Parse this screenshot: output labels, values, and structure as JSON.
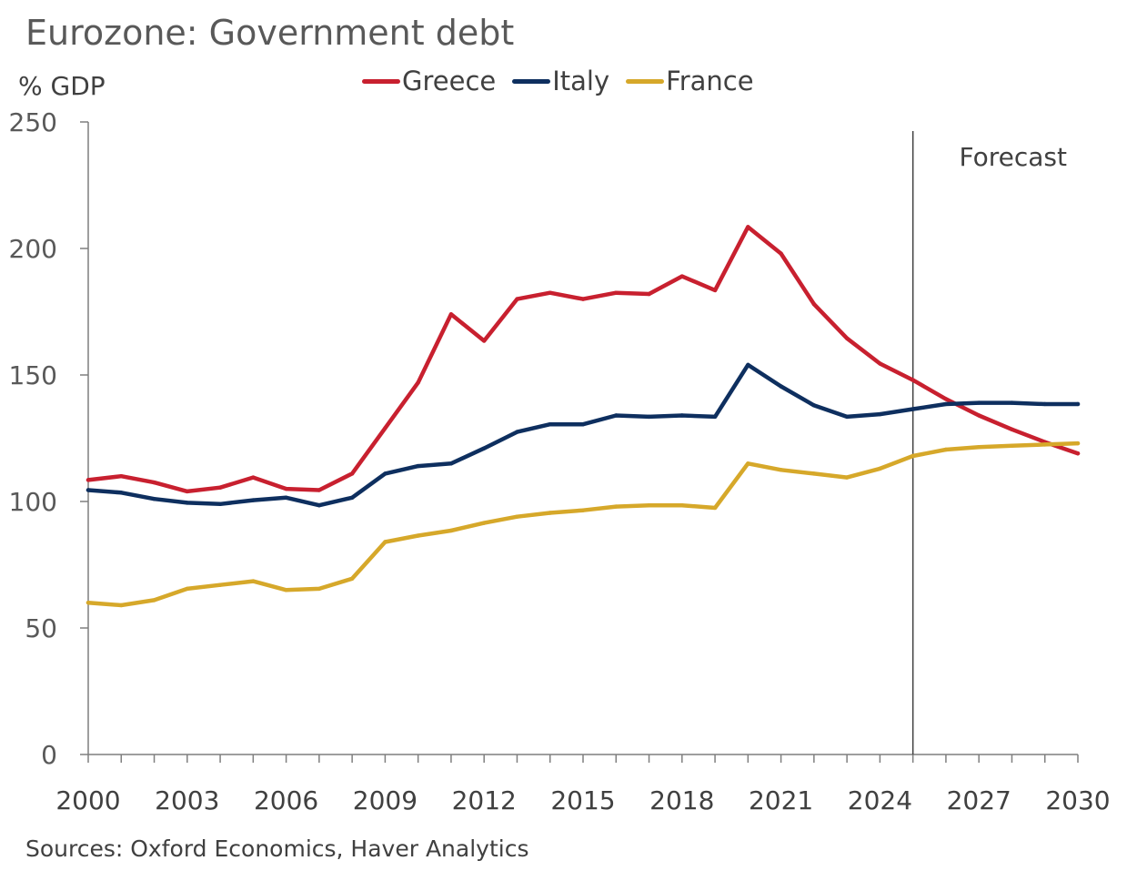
{
  "title": "Eurozone: Government debt",
  "unit_label": "% GDP",
  "source": "Sources: Oxford Economics, Haver Analytics",
  "chart_data": {
    "type": "line",
    "title": "Eurozone: Government debt",
    "ylabel": "% GDP",
    "xlabel": "",
    "ylim": [
      0,
      250
    ],
    "xlim": [
      2000,
      2030
    ],
    "y_ticks": [
      0,
      50,
      100,
      150,
      200,
      250
    ],
    "x_tick_labels": [
      "2000",
      "2003",
      "2006",
      "2009",
      "2012",
      "2015",
      "2018",
      "2021",
      "2024",
      "2027",
      "2030"
    ],
    "legend_position": "top-center",
    "annotations": [
      {
        "label": "Forecast",
        "x": 2025
      }
    ],
    "series": [
      {
        "name": "Greece",
        "color": "#C8202F",
        "x": [
          2000,
          2001,
          2002,
          2003,
          2004,
          2005,
          2006,
          2007,
          2008,
          2009,
          2010,
          2011,
          2012,
          2013,
          2014,
          2015,
          2016,
          2017,
          2018,
          2019,
          2020,
          2021,
          2022,
          2023,
          2024,
          2025,
          2026,
          2027,
          2028,
          2029,
          2030
        ],
        "values": [
          108.5,
          110,
          107.5,
          104,
          105.5,
          109.5,
          105,
          104.5,
          111,
          129,
          147,
          174,
          163.5,
          180,
          182.5,
          180,
          182.5,
          182,
          189,
          183.5,
          208.5,
          198,
          178,
          164.5,
          154.5,
          148,
          140.5,
          134,
          128.5,
          123.5,
          119
        ]
      },
      {
        "name": "Italy",
        "color": "#0E2F5F",
        "x": [
          2000,
          2001,
          2002,
          2003,
          2004,
          2005,
          2006,
          2007,
          2008,
          2009,
          2010,
          2011,
          2012,
          2013,
          2014,
          2015,
          2016,
          2017,
          2018,
          2019,
          2020,
          2021,
          2022,
          2023,
          2024,
          2025,
          2026,
          2027,
          2028,
          2029,
          2030
        ],
        "values": [
          104.5,
          103.5,
          101,
          99.5,
          99,
          100.5,
          101.5,
          98.5,
          101.5,
          111,
          114,
          115,
          121,
          127.5,
          130.5,
          130.5,
          134,
          133.5,
          134,
          133.5,
          154,
          145.5,
          138,
          133.5,
          134.5,
          136.5,
          138.5,
          139,
          139,
          138.5,
          138.5
        ]
      },
      {
        "name": "France",
        "color": "#D6A82A",
        "x": [
          2000,
          2001,
          2002,
          2003,
          2004,
          2005,
          2006,
          2007,
          2008,
          2009,
          2010,
          2011,
          2012,
          2013,
          2014,
          2015,
          2016,
          2017,
          2018,
          2019,
          2020,
          2021,
          2022,
          2023,
          2024,
          2025,
          2026,
          2027,
          2028,
          2029,
          2030
        ],
        "values": [
          60,
          59,
          61,
          65.5,
          67,
          68.5,
          65,
          65.5,
          69.5,
          84,
          86.5,
          88.5,
          91.5,
          94,
          95.5,
          96.5,
          98,
          98.5,
          98.5,
          97.5,
          115,
          112.5,
          111,
          109.5,
          113,
          118,
          120.5,
          121.5,
          122,
          122.5,
          123
        ]
      }
    ]
  }
}
